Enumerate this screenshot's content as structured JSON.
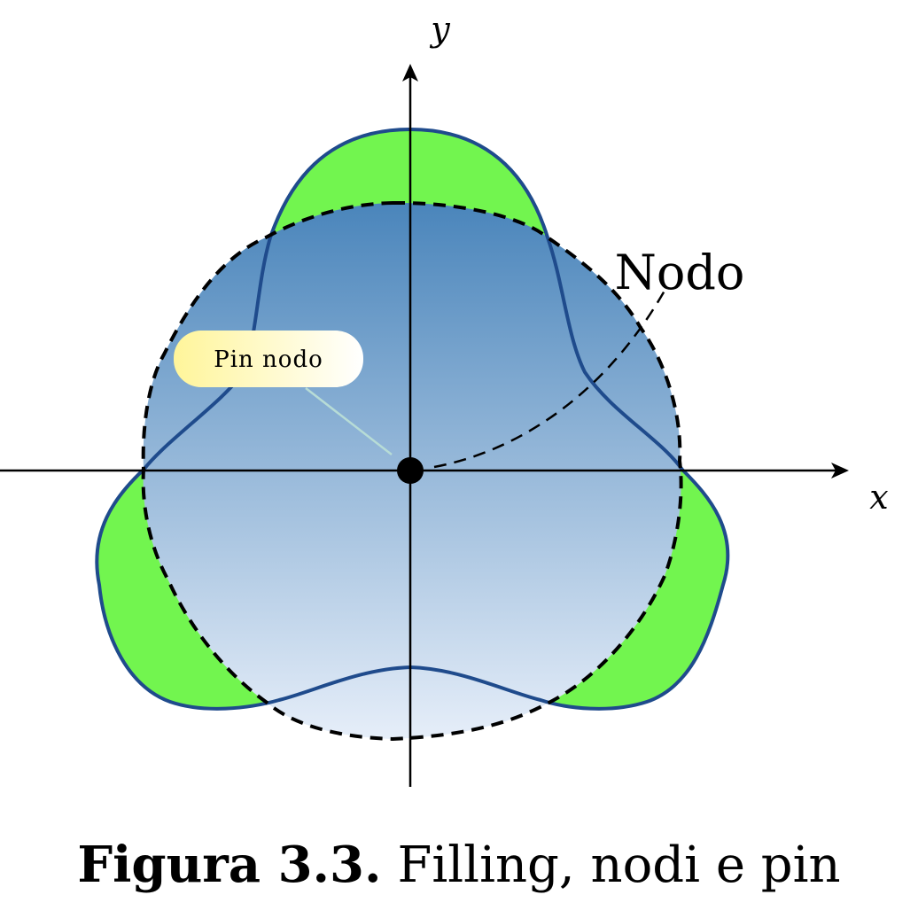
{
  "axes": {
    "x_label": "x",
    "y_label": "y"
  },
  "labels": {
    "node": "Nodo",
    "pin": "Pin nodo"
  },
  "caption": {
    "label": "Figura 3.3.",
    "text": "Filling, nodi e pin"
  },
  "colors": {
    "fill_green": "#72f54f",
    "curve_blue": "#1f4b8c",
    "shade_top": "#4a85bb",
    "shade_bottom": "#e6eef9",
    "pin_fill": "#fff9a8",
    "pin_line": "#b7dcd6"
  }
}
